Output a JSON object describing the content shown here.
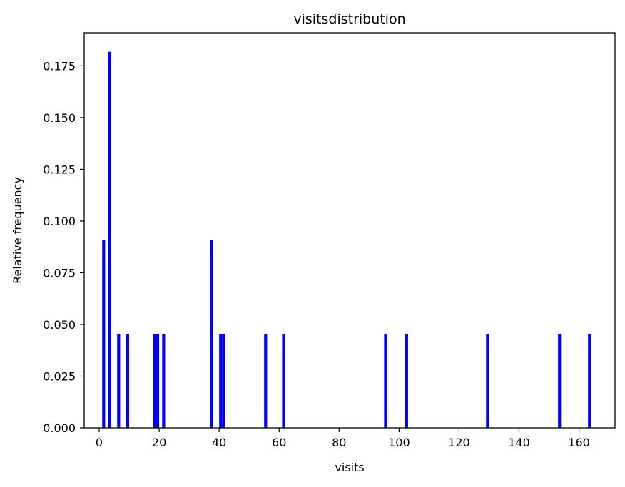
{
  "chart_data": {
    "type": "bar",
    "title": "visitsdistribution",
    "xlabel": "visits",
    "ylabel": "Relative frequency",
    "xlim": [
      -5,
      172
    ],
    "ylim": [
      0,
      0.191
    ],
    "xticks": [
      0,
      20,
      40,
      60,
      80,
      100,
      120,
      140,
      160
    ],
    "xtick_labels": [
      "0",
      "20",
      "40",
      "60",
      "80",
      "100",
      "120",
      "140",
      "160"
    ],
    "yticks": [
      0,
      0.025,
      0.05,
      0.075,
      0.1,
      0.125,
      0.15,
      0.175
    ],
    "ytick_labels": [
      "0.000",
      "0.025",
      "0.050",
      "0.075",
      "0.100",
      "0.125",
      "0.150",
      "0.175"
    ],
    "grid": false,
    "bar_color": "#0000ff",
    "bar_width": 1,
    "x": [
      1.5,
      3.5,
      6.5,
      9.5,
      18.5,
      19.5,
      21.5,
      37.5,
      40.5,
      41.5,
      55.5,
      61.5,
      95.5,
      102.5,
      129.5,
      153.5,
      163.5
    ],
    "values": [
      0.0909,
      0.1818,
      0.0455,
      0.0455,
      0.0455,
      0.0455,
      0.0455,
      0.0909,
      0.0455,
      0.0455,
      0.0455,
      0.0455,
      0.0455,
      0.0455,
      0.0455,
      0.0455,
      0.0455
    ]
  }
}
